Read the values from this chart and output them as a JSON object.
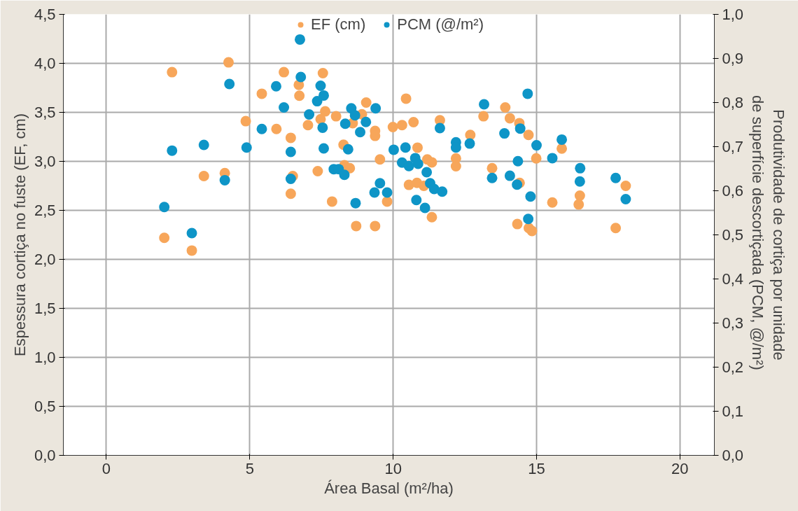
{
  "chart_data": {
    "type": "scatter",
    "xlabel": "Área Basal (m²/ha)",
    "ylabel": "Espessura cortiça no fuste (EF, cm)",
    "y2label": "Produtividade de cortiça por unidade\nde superfície descortiçada  (PCM, @/m²)",
    "xlim": [
      -1.5,
      21.2
    ],
    "ylim": [
      0,
      4.5
    ],
    "y2lim": [
      0,
      1.0
    ],
    "xticks": [
      0,
      5,
      10,
      15,
      20
    ],
    "yticks": [
      {
        "value": 0,
        "label": "0,0"
      },
      {
        "value": 0.5,
        "label": "0,5"
      },
      {
        "value": 1.0,
        "label": "1,0"
      },
      {
        "value": 1.5,
        "label": "1,5"
      },
      {
        "value": 2.0,
        "label": "2,0"
      },
      {
        "value": 2.5,
        "label": "2,5"
      },
      {
        "value": 3.0,
        "label": "3,0"
      },
      {
        "value": 3.5,
        "label": "3,5"
      },
      {
        "value": 4.0,
        "label": "4,0"
      },
      {
        "value": 4.5,
        "label": "4,5"
      }
    ],
    "y2ticks": [
      {
        "value": 0,
        "label": "0,0"
      },
      {
        "value": 0.1,
        "label": "0,1"
      },
      {
        "value": 0.2,
        "label": "0,2"
      },
      {
        "value": 0.3,
        "label": "0,3"
      },
      {
        "value": 0.4,
        "label": "0,4"
      },
      {
        "value": 0.5,
        "label": "0,5"
      },
      {
        "value": 0.6,
        "label": "0,6"
      },
      {
        "value": 0.7,
        "label": "0,7"
      },
      {
        "value": 0.8,
        "label": "0,8"
      },
      {
        "value": 0.9,
        "label": "0,9"
      },
      {
        "value": 1.0,
        "label": "1,0"
      }
    ],
    "grid": true,
    "legend": "top",
    "marker": "circle",
    "series": [
      {
        "name": "EF (cm)",
        "color": "#f7a65a",
        "axis": "y",
        "x": [
          2.29,
          4.26,
          5.42,
          4.86,
          5.93,
          6.43,
          3.4,
          4.13,
          6.43,
          2.02,
          2.98,
          6.19,
          6.71,
          6.73,
          6.5,
          7.55,
          7.03,
          7.47,
          7.63,
          8.01,
          9.06,
          8.91,
          8.59,
          9.37,
          9.37,
          8.27,
          9.54,
          7.37,
          8.3,
          8.49,
          7.87,
          8.71,
          9.37,
          9.79,
          10.45,
          9.99,
          10.31,
          10.71,
          11.63,
          10.85,
          11.19,
          11.35,
          10.55,
          10.83,
          11.07,
          11.35,
          12.19,
          12.19,
          12.69,
          13.15,
          13.91,
          14.07,
          14.4,
          14.72,
          14.99,
          15.88,
          13.45,
          14.41,
          16.51,
          16.47,
          15.55,
          14.33,
          14.73,
          14.84,
          17.76,
          18.11
        ],
        "values": [
          3.91,
          4.01,
          3.69,
          3.41,
          3.33,
          3.24,
          2.85,
          2.88,
          2.67,
          2.22,
          2.09,
          3.91,
          3.78,
          3.67,
          2.85,
          3.9,
          3.37,
          3.43,
          3.51,
          3.46,
          3.6,
          3.48,
          3.39,
          3.31,
          3.26,
          3.17,
          3.02,
          2.9,
          2.96,
          2.93,
          2.59,
          2.34,
          2.34,
          2.59,
          3.64,
          3.35,
          3.37,
          3.4,
          3.42,
          3.14,
          3.02,
          2.99,
          2.76,
          2.78,
          2.75,
          2.43,
          3.03,
          2.95,
          3.27,
          3.46,
          3.55,
          3.44,
          3.39,
          3.27,
          3.03,
          3.13,
          2.93,
          2.78,
          2.65,
          2.56,
          2.58,
          2.36,
          2.32,
          2.29,
          2.32,
          2.75
        ]
      },
      {
        "name": "PCM (@/m²)",
        "color": "#0e95c7",
        "axis": "y2",
        "x": [
          4.29,
          5.92,
          6.19,
          5.42,
          4.89,
          3.4,
          2.29,
          6.43,
          4.13,
          6.43,
          2.02,
          2.98,
          6.75,
          6.78,
          7.47,
          7.58,
          7.35,
          7.07,
          7.54,
          7.58,
          8.54,
          8.67,
          8.33,
          9.05,
          8.85,
          9.39,
          8.43,
          7.93,
          8.1,
          8.3,
          8.69,
          9.54,
          9.35,
          9.79,
          10.02,
          10.43,
          10.31,
          10.55,
          10.77,
          10.87,
          11.17,
          11.29,
          11.43,
          11.71,
          10.81,
          11.11,
          11.63,
          12.19,
          12.19,
          12.67,
          13.17,
          14.69,
          13.88,
          14.43,
          15.0,
          15.88,
          15.55,
          14.35,
          13.45,
          14.07,
          14.32,
          14.79,
          14.71,
          16.52,
          16.51,
          17.76,
          18.11
        ],
        "values": [
          0.842,
          0.837,
          0.789,
          0.74,
          0.698,
          0.704,
          0.691,
          0.688,
          0.624,
          0.627,
          0.563,
          0.504,
          0.943,
          0.858,
          0.838,
          0.816,
          0.803,
          0.773,
          0.743,
          0.696,
          0.787,
          0.771,
          0.752,
          0.756,
          0.733,
          0.787,
          0.694,
          0.649,
          0.649,
          0.636,
          0.572,
          0.617,
          0.596,
          0.596,
          0.693,
          0.698,
          0.664,
          0.656,
          0.674,
          0.661,
          0.642,
          0.617,
          0.604,
          0.598,
          0.579,
          0.561,
          0.742,
          0.71,
          0.698,
          0.707,
          0.796,
          0.82,
          0.73,
          0.741,
          0.703,
          0.716,
          0.674,
          0.667,
          0.629,
          0.634,
          0.614,
          0.587,
          0.536,
          0.651,
          0.621,
          0.629,
          0.581
        ]
      }
    ]
  }
}
